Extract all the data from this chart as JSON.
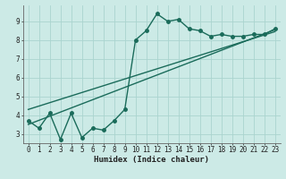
{
  "xlabel": "Humidex (Indice chaleur)",
  "background_color": "#cceae6",
  "grid_color": "#aad4cf",
  "line_color": "#1a6b5a",
  "xlim": [
    -0.5,
    23.5
  ],
  "ylim": [
    2.5,
    9.85
  ],
  "xticks": [
    0,
    1,
    2,
    3,
    4,
    5,
    6,
    7,
    8,
    9,
    10,
    11,
    12,
    13,
    14,
    15,
    16,
    17,
    18,
    19,
    20,
    21,
    22,
    23
  ],
  "yticks": [
    3,
    4,
    5,
    6,
    7,
    8,
    9
  ],
  "curve_x": [
    0,
    1,
    2,
    3,
    4,
    5,
    6,
    7,
    8,
    9,
    10,
    11,
    12,
    13,
    14,
    15,
    16,
    17,
    18,
    19,
    20,
    21,
    22,
    23
  ],
  "curve_y": [
    3.7,
    3.3,
    4.1,
    2.7,
    4.1,
    2.8,
    3.3,
    3.2,
    3.7,
    4.3,
    8.0,
    8.5,
    9.4,
    9.0,
    9.1,
    8.6,
    8.5,
    8.2,
    8.3,
    8.2,
    8.2,
    8.3,
    8.3,
    8.6
  ],
  "trend1_x": [
    0,
    23
  ],
  "trend1_y": [
    3.5,
    8.55
  ],
  "trend2_x": [
    0,
    23
  ],
  "trend2_y": [
    4.3,
    8.45
  ],
  "marker_size": 2.5,
  "line_width": 1.0,
  "tick_fontsize": 5.5,
  "label_fontsize": 6.5
}
